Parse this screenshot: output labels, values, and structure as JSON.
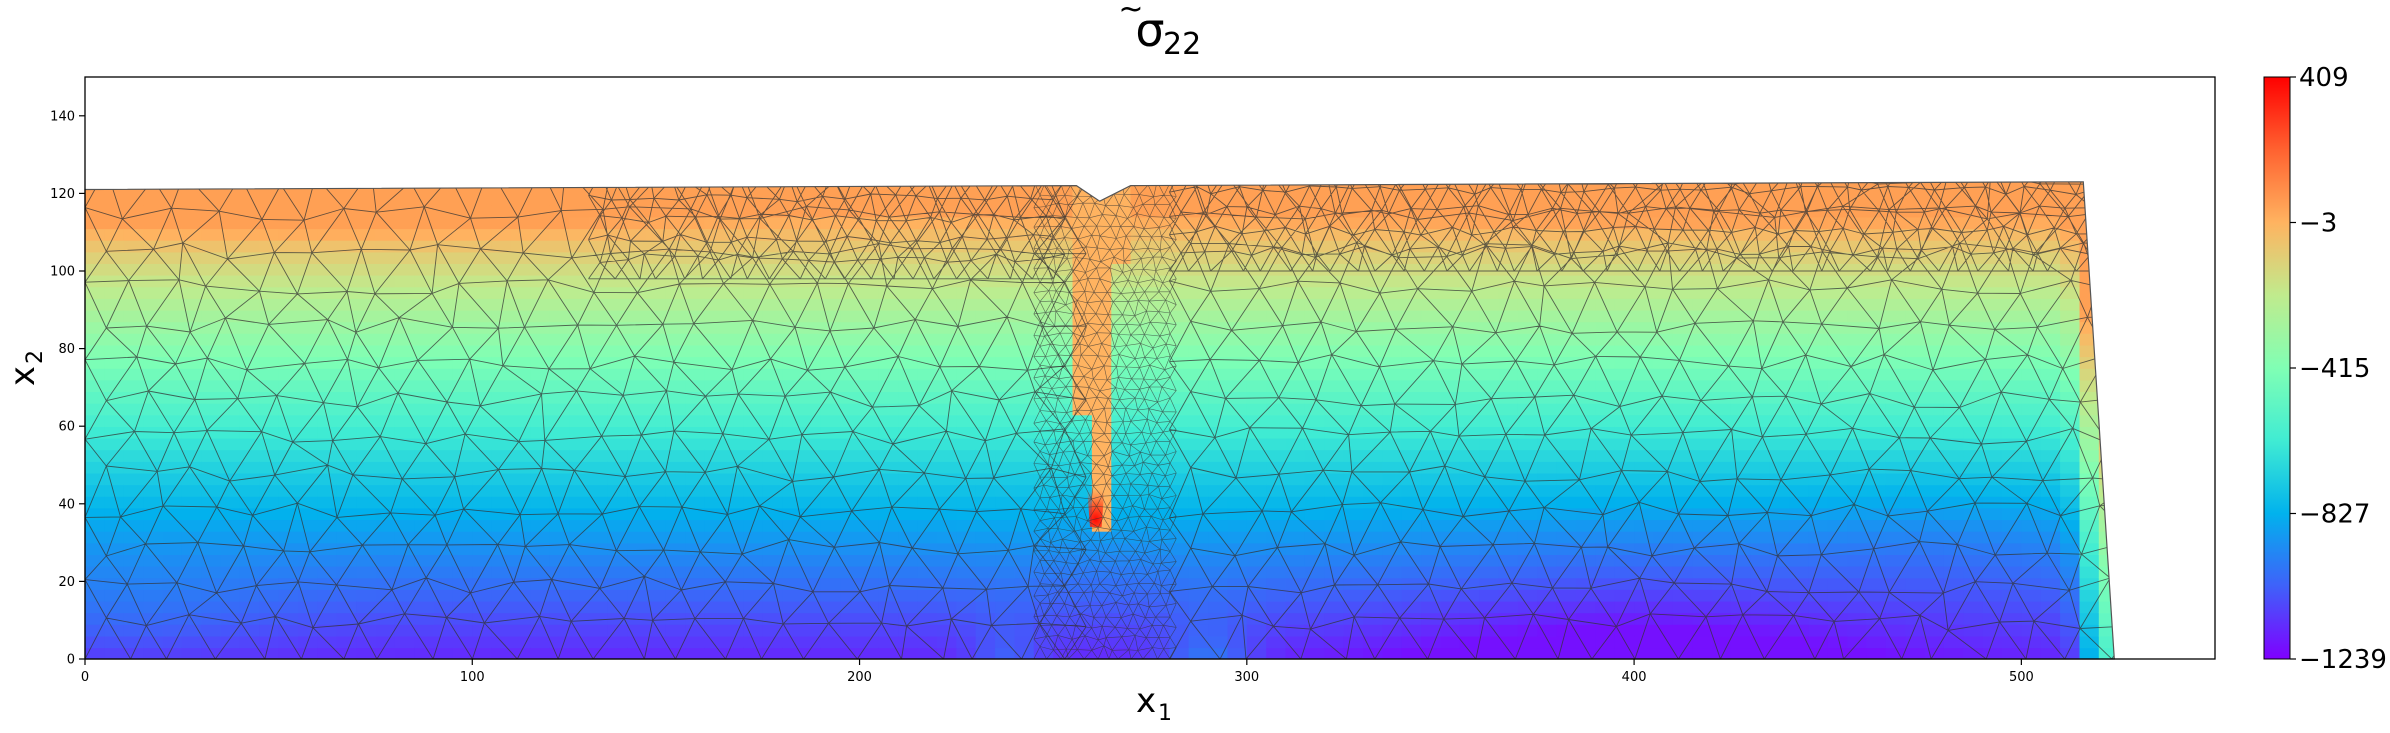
{
  "chart_data": {
    "type": "heatmap",
    "title": "σ̃₂₂",
    "title_main": "σ",
    "title_accent": "~",
    "title_sub": "22",
    "xlabel_main": "x",
    "xlabel_sub": "1",
    "ylabel_main": "x",
    "ylabel_sub": "2",
    "xlim": [
      0,
      550
    ],
    "ylim": [
      0,
      150
    ],
    "x_ticks": [
      0,
      100,
      200,
      300,
      400,
      500
    ],
    "y_ticks": [
      0,
      20,
      40,
      60,
      80,
      100,
      120,
      140
    ],
    "grid": false,
    "colormap": "rainbow",
    "colorbar": {
      "min": -1239,
      "max": 409,
      "ticks": [
        409,
        -3,
        -415,
        -827,
        -1239
      ],
      "tick_labels": [
        "409",
        "−3",
        "−415",
        "−827",
        "−1239"
      ],
      "colors": [
        "#7f00ff",
        "#3f61fa",
        "#01b2ed",
        "#40ecd3",
        "#80ffb4",
        "#c0eb8d",
        "#ffb360",
        "#ff6230",
        "#ff0000"
      ]
    },
    "mesh": {
      "domain_outline": [
        [
          0,
          0
        ],
        [
          524,
          0
        ],
        [
          516,
          123
        ],
        [
          270,
          122
        ],
        [
          262,
          118
        ],
        [
          256,
          122
        ],
        [
          0,
          121
        ]
      ],
      "notch": {
        "x_center": 261,
        "tip_y": 37,
        "top_y": 122,
        "half_width_top": 8
      },
      "edge_color": "#333333"
    },
    "field_features": [
      {
        "name": "notch-stress-concentration",
        "x": 261,
        "y": 36,
        "value": 409
      },
      {
        "name": "notch-interior",
        "x": 261,
        "y": 80,
        "value": -3
      },
      {
        "name": "top-edge",
        "x": 300,
        "y": 118,
        "value": -3
      },
      {
        "name": "bottom-minimum",
        "x": 400,
        "y": 5,
        "value": -1239
      }
    ]
  }
}
